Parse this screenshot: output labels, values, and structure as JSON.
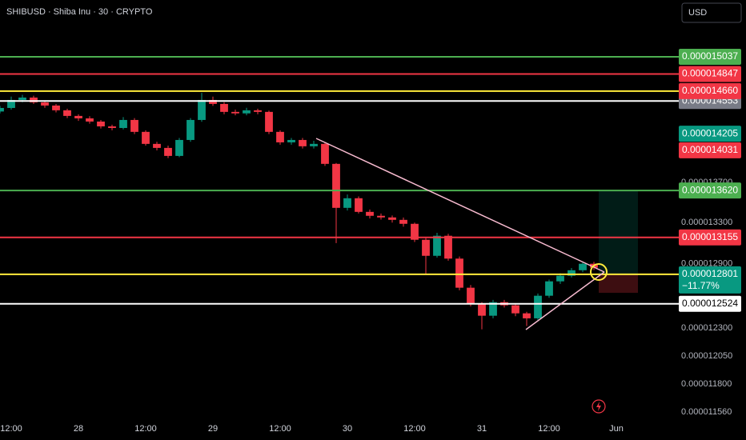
{
  "chart_data": {
    "type": "candlestick",
    "title": "SHIBUSD · Shiba Inu · 30 · CRYPTO",
    "currency": "USD",
    "log_scale": true,
    "colors": {
      "up": "#089981",
      "down": "#f23645"
    },
    "x": [
      -2,
      0,
      2,
      4,
      6,
      8,
      10,
      12,
      14,
      16,
      18,
      20,
      22,
      24,
      26,
      28,
      30,
      32,
      34,
      36,
      38,
      40,
      42,
      44,
      46,
      48,
      50,
      52,
      54,
      56,
      58,
      60,
      62,
      64,
      66,
      68,
      70,
      72,
      74,
      76,
      78,
      80,
      82,
      84,
      86,
      88,
      90,
      92,
      94,
      96,
      98,
      100,
      102,
      104
    ],
    "open": [
      1.444e-05,
      1.4478e-05,
      1.4564e-05,
      1.459e-05,
      1.4538e-05,
      1.4504e-05,
      1.4453e-05,
      1.4393e-05,
      1.4367e-05,
      1.4333e-05,
      1.4282e-05,
      1.4265e-05,
      1.435e-05,
      1.4224e-05,
      1.4098e-05,
      1.4056e-05,
      1.3973e-05,
      1.4139e-05,
      1.435e-05,
      1.4564e-05,
      1.4521e-05,
      1.4436e-05,
      1.442e-05,
      1.4453e-05,
      1.4436e-05,
      1.4224e-05,
      1.4114e-05,
      1.4139e-05,
      1.4073e-05,
      1.4098e-05,
      1.3891e-05,
      1.3446e-05,
      1.3542e-05,
      1.3406e-05,
      1.3367e-05,
      1.3351e-05,
      1.3327e-05,
      1.3288e-05,
      1.3132e-05,
      1.2977e-05,
      1.3171e-05,
      1.295e-05,
      1.2674e-05,
      1.2524e-05,
      1.2414e-05,
      1.2539e-05,
      1.251e-05,
      1.2436e-05,
      1.239e-05,
      1.2599e-05,
      1.2734e-05,
      1.2787e-05,
      1.2839e-05,
      1.2901e-05
    ],
    "high": [
      1.45e-05,
      1.46e-05,
      1.462e-05,
      1.461e-05,
      1.456e-05,
      1.452e-05,
      1.447e-05,
      1.441e-05,
      1.439e-05,
      1.435e-05,
      1.43e-05,
      1.438e-05,
      1.437e-05,
      1.424e-05,
      1.412e-05,
      1.408e-05,
      1.416e-05,
      1.437e-05,
      1.464e-05,
      1.46e-05,
      1.454e-05,
      1.446e-05,
      1.448e-05,
      1.447e-05,
      1.445e-05,
      1.424e-05,
      1.416e-05,
      1.416e-05,
      1.413e-05,
      1.411e-05,
      1.39e-05,
      1.358e-05,
      1.356e-05,
      1.343e-05,
      1.339e-05,
      1.337e-05,
      1.335e-05,
      1.33e-05,
      1.315e-05,
      1.32e-05,
      1.319e-05,
      1.297e-05,
      1.27e-05,
      1.254e-05,
      1.256e-05,
      1.256e-05,
      1.253e-05,
      1.245e-05,
      1.262e-05,
      1.275e-05,
      1.281e-05,
      1.286e-05,
      1.292e-05,
      1.292e-05
    ],
    "low": [
      1.442e-05,
      1.446e-05,
      1.454e-05,
      1.452e-05,
      1.448e-05,
      1.443e-05,
      1.437e-05,
      1.434e-05,
      1.431e-05,
      1.426e-05,
      1.424e-05,
      1.425e-05,
      1.42e-05,
      1.408e-05,
      1.403e-05,
      1.395e-05,
      1.396e-05,
      1.412e-05,
      1.433e-05,
      1.45e-05,
      1.441e-05,
      1.44e-05,
      1.44e-05,
      1.441e-05,
      1.42e-05,
      1.409e-05,
      1.409e-05,
      1.405e-05,
      1.405e-05,
      1.387e-05,
      1.31e-05,
      1.342e-05,
      1.339e-05,
      1.334e-05,
      1.333e-05,
      1.33e-05,
      1.326e-05,
      1.311e-05,
      1.28e-05,
      1.296e-05,
      1.293e-05,
      1.265e-05,
      1.25e-05,
      1.229e-05,
      1.239e-05,
      1.249e-05,
      1.241e-05,
      1.232e-05,
      1.237e-05,
      1.258e-05,
      1.271e-05,
      1.277e-05,
      1.282e-05,
      1.284e-05
    ],
    "close": [
      1.4478e-05,
      1.4564e-05,
      1.459e-05,
      1.4538e-05,
      1.4504e-05,
      1.4453e-05,
      1.4393e-05,
      1.4367e-05,
      1.4333e-05,
      1.4282e-05,
      1.4265e-05,
      1.435e-05,
      1.4224e-05,
      1.4098e-05,
      1.4056e-05,
      1.3973e-05,
      1.4139e-05,
      1.435e-05,
      1.4564e-05,
      1.4521e-05,
      1.4436e-05,
      1.442e-05,
      1.4453e-05,
      1.4436e-05,
      1.4224e-05,
      1.4114e-05,
      1.4139e-05,
      1.4073e-05,
      1.4098e-05,
      1.3891e-05,
      1.3446e-05,
      1.3542e-05,
      1.3406e-05,
      1.3367e-05,
      1.3351e-05,
      1.3327e-05,
      1.3288e-05,
      1.3132e-05,
      1.2977e-05,
      1.3171e-05,
      1.295e-05,
      1.2674e-05,
      1.2524e-05,
      1.2414e-05,
      1.2539e-05,
      1.251e-05,
      1.2436e-05,
      1.239e-05,
      1.2599e-05,
      1.2734e-05,
      1.2787e-05,
      1.2839e-05,
      1.2901e-05,
      1.2863e-05
    ],
    "xlim": [
      -2,
      118
    ],
    "xticks": [
      {
        "value": 0,
        "label": "12:00"
      },
      {
        "value": 12,
        "label": "28"
      },
      {
        "value": 24,
        "label": "12:00"
      },
      {
        "value": 36,
        "label": "29"
      },
      {
        "value": 48,
        "label": "12:00"
      },
      {
        "value": 60,
        "label": "30"
      },
      {
        "value": 72,
        "label": "12:00"
      },
      {
        "value": 84,
        "label": "31"
      },
      {
        "value": 96,
        "label": "12:00"
      },
      {
        "value": 108,
        "label": "Jun"
      }
    ],
    "ylim": [
      1.14917e-05,
      1.56826e-05
    ],
    "yticks": [
      {
        "value": 1.37e-05,
        "label": "0.000013700"
      },
      {
        "value": 1.33e-05,
        "label": "0.000013300"
      },
      {
        "value": 1.29e-05,
        "label": "0.000012900"
      },
      {
        "value": 1.23e-05,
        "label": "0.000012300"
      },
      {
        "value": 1.205e-05,
        "label": "0.000012050"
      },
      {
        "value": 1.18e-05,
        "label": "0.000011800"
      },
      {
        "value": 1.156e-05,
        "label": "0.000011560"
      }
    ],
    "levels": [
      {
        "value": 1.5037e-05,
        "label": "0.000015037",
        "color": "#4caf50",
        "label_color": "#4caf50"
      },
      {
        "value": 1.4847e-05,
        "label": "0.000014847",
        "color": "#f23645",
        "label_color": "#f23645"
      },
      {
        "value": 1.4553e-05,
        "label": "0.000014553",
        "color": "#ffffff",
        "label_color": "#787b86"
      },
      {
        "value": 1.466e-05,
        "label": "0.000014660",
        "color": "#ffeb3b",
        "label_color": "#f23645"
      },
      {
        "value": 1.362e-05,
        "label": "0.000013620",
        "color": "#4caf50",
        "label_color": "#4caf50"
      },
      {
        "value": 1.3155e-05,
        "label": "0.000013155",
        "color": "#f23645",
        "label_color": "#f23645"
      },
      {
        "value": 1.2524e-05,
        "label": "0.000012524",
        "color": "#ffffff",
        "label_color": "#ffffff"
      },
      {
        "value": 1.2801e-05,
        "label": "0.000012801",
        "color": "#ffeb3b",
        "label_color": "#089981",
        "note": "−11.77%"
      }
    ],
    "price_labels": [
      {
        "value": 1.4205e-05,
        "label": "0.000014205",
        "color": "#089981"
      },
      {
        "value": 1.4031e-05,
        "label": "0.000014031",
        "color": "#f23645"
      }
    ]
  }
}
